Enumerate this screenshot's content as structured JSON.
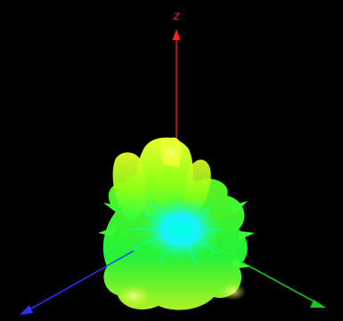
{
  "viewport": {
    "background": "#000000"
  },
  "axes": {
    "z": {
      "label": "z",
      "color": "#ff2020"
    },
    "x": {
      "label": "",
      "color": "#2a33ff"
    },
    "y": {
      "label": "",
      "color": "#19c81c"
    }
  },
  "surface": {
    "shape": "radiation-lobe-pattern",
    "colormap": [
      "#00ffd8",
      "#12f2ff",
      "#20ff5a",
      "#52ff2a",
      "#c8ff10",
      "#f2ff40"
    ]
  }
}
